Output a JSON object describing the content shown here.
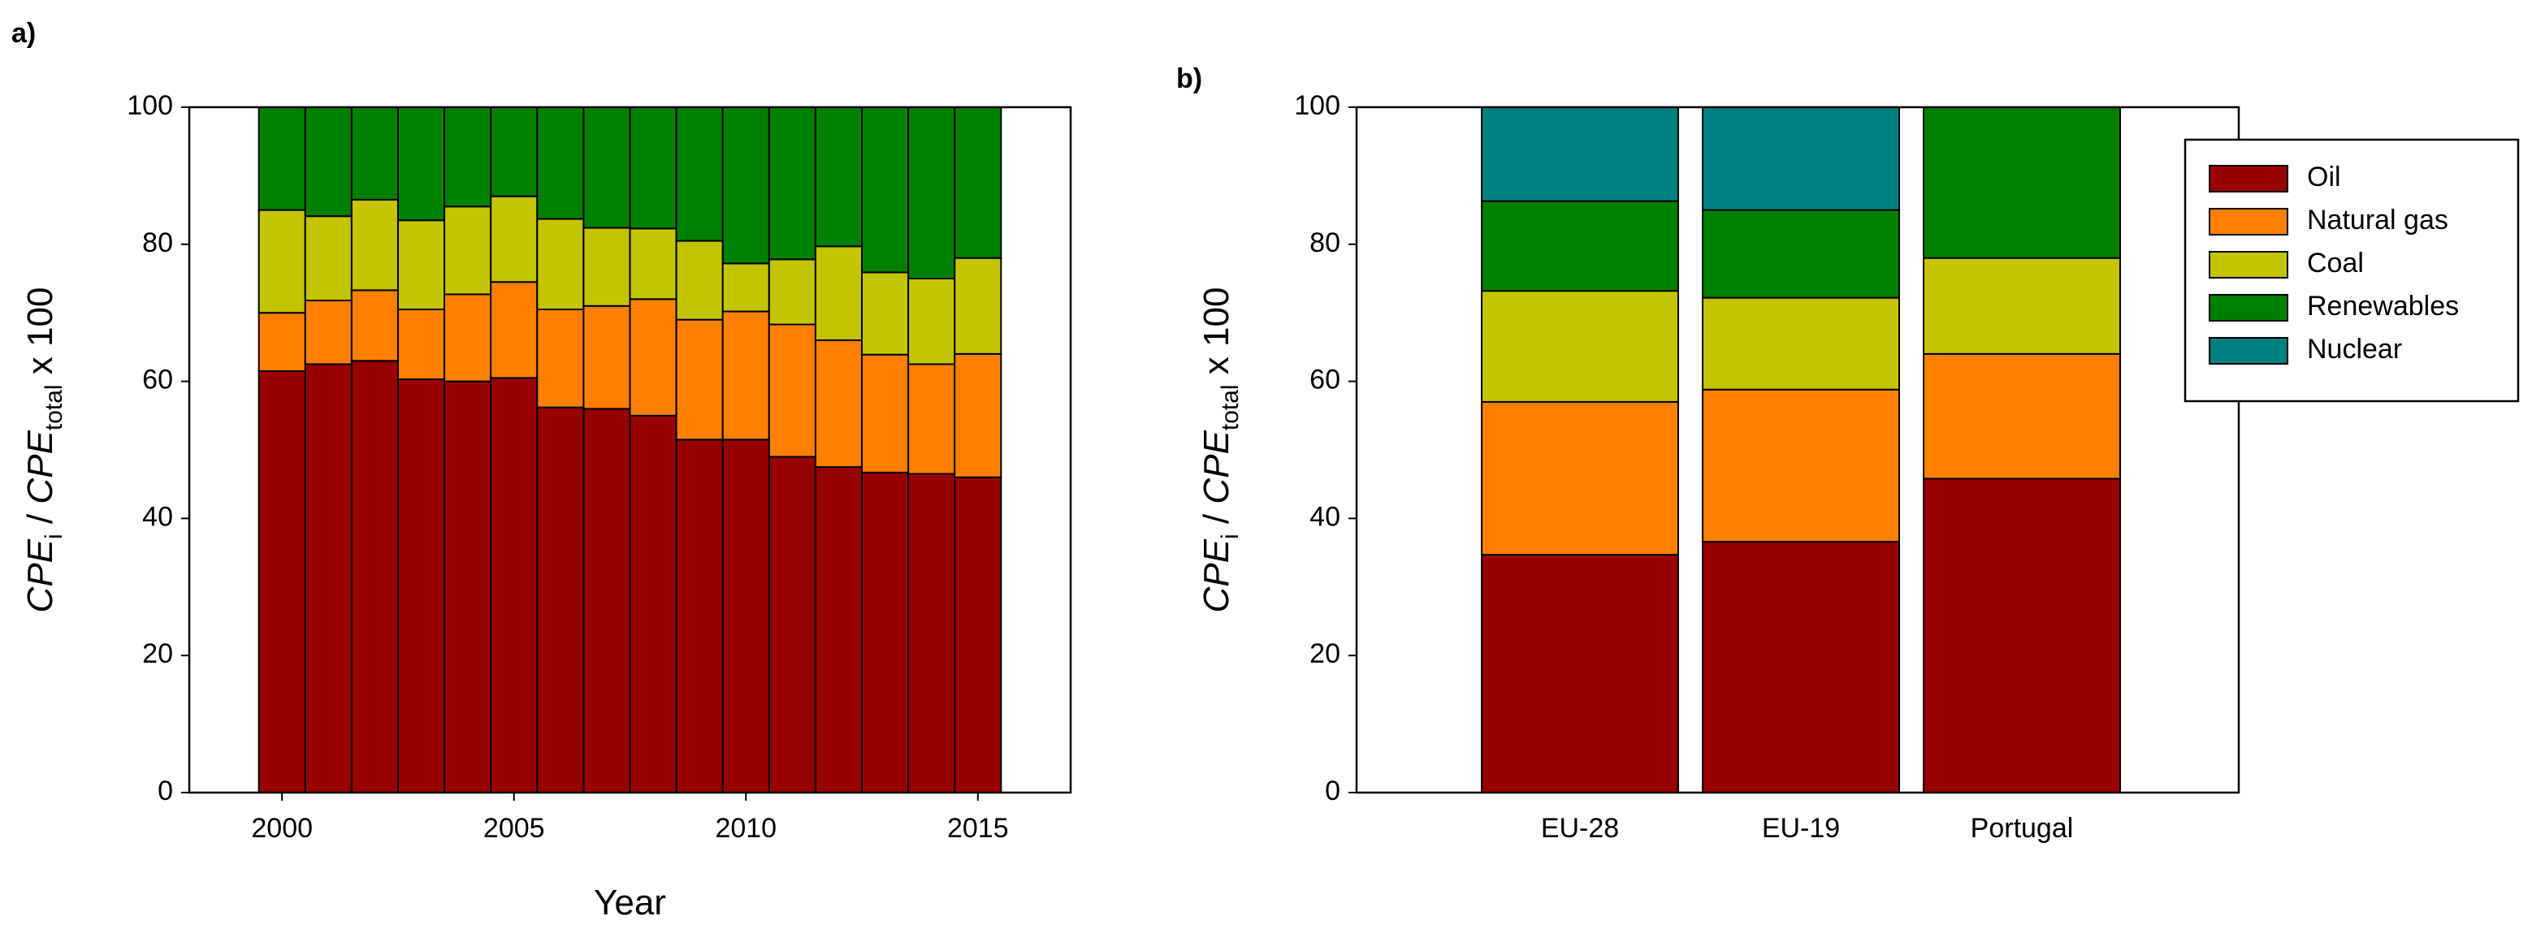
{
  "chart_data": [
    {
      "panel_label": "a)",
      "type": "bar",
      "stacked": true,
      "xlabel": "Year",
      "ylabel": {
        "base": "CPE",
        "sub_num": "i",
        "sep": " / ",
        "base2": "CPE",
        "sub_den": "total",
        "suffix": " x 100"
      },
      "ylim": [
        0,
        100
      ],
      "yticks": [
        0,
        20,
        40,
        60,
        80,
        100
      ],
      "xlim": [
        1998,
        2017
      ],
      "xticks": [
        2000,
        2005,
        2010,
        2015
      ],
      "x": [
        2000,
        2001,
        2002,
        2003,
        2004,
        2005,
        2006,
        2007,
        2008,
        2009,
        2010,
        2011,
        2012,
        2013,
        2014,
        2015
      ],
      "series": [
        {
          "name": "Oil",
          "color": "#990000",
          "values": [
            61.5,
            62.5,
            63,
            60.3,
            60,
            60.5,
            56.2,
            56,
            55,
            51.5,
            51.5,
            49,
            47.5,
            46.7,
            46.5,
            46
          ]
        },
        {
          "name": "Natural gas",
          "color": "#FF8000",
          "values": [
            8.5,
            9.3,
            10.3,
            10.2,
            12.7,
            14,
            14.3,
            15,
            17,
            17.5,
            18.7,
            19.3,
            18.5,
            17.2,
            16,
            18
          ]
        },
        {
          "name": "Coal",
          "color": "#C4C400",
          "values": [
            15,
            12.3,
            13.2,
            13,
            12.8,
            12.5,
            13.2,
            11.4,
            10.3,
            11.5,
            7,
            9.5,
            13.7,
            12,
            12.5,
            14
          ]
        },
        {
          "name": "Renewables",
          "color": "#008000",
          "values": [
            15,
            15.9,
            13.5,
            16.5,
            14.5,
            13,
            16.3,
            17.6,
            17.7,
            19.5,
            22.8,
            22.2,
            20.3,
            24.1,
            25,
            22
          ]
        }
      ]
    },
    {
      "panel_label": "b)",
      "type": "bar",
      "stacked": true,
      "ylabel": {
        "base": "CPE",
        "sub_num": "i",
        "sep": " / ",
        "base2": "CPE",
        "sub_den": "total",
        "suffix": " x 100"
      },
      "ylim": [
        0,
        100
      ],
      "yticks": [
        0,
        20,
        40,
        60,
        80,
        100
      ],
      "categories": [
        "EU-28",
        "EU-19",
        "Portugal"
      ],
      "series": [
        {
          "name": "Oil",
          "color": "#990000",
          "values": [
            34.7,
            36.6,
            45.8
          ]
        },
        {
          "name": "Natural gas",
          "color": "#FF8000",
          "values": [
            22.3,
            22.2,
            18.2
          ]
        },
        {
          "name": "Coal",
          "color": "#C4C400",
          "values": [
            16.2,
            13.4,
            14
          ]
        },
        {
          "name": "Renewables",
          "color": "#008000",
          "values": [
            13.1,
            12.8,
            22
          ]
        },
        {
          "name": "Nuclear",
          "color": "#008080",
          "values": [
            13.7,
            15,
            0
          ]
        }
      ],
      "legend": {
        "placement": "top-right",
        "items": [
          {
            "name": "Oil",
            "color": "#990000"
          },
          {
            "name": "Natural gas",
            "color": "#FF8000"
          },
          {
            "name": "Coal",
            "color": "#C4C400"
          },
          {
            "name": "Renewables",
            "color": "#008000"
          },
          {
            "name": "Nuclear",
            "color": "#008080"
          }
        ]
      }
    }
  ]
}
